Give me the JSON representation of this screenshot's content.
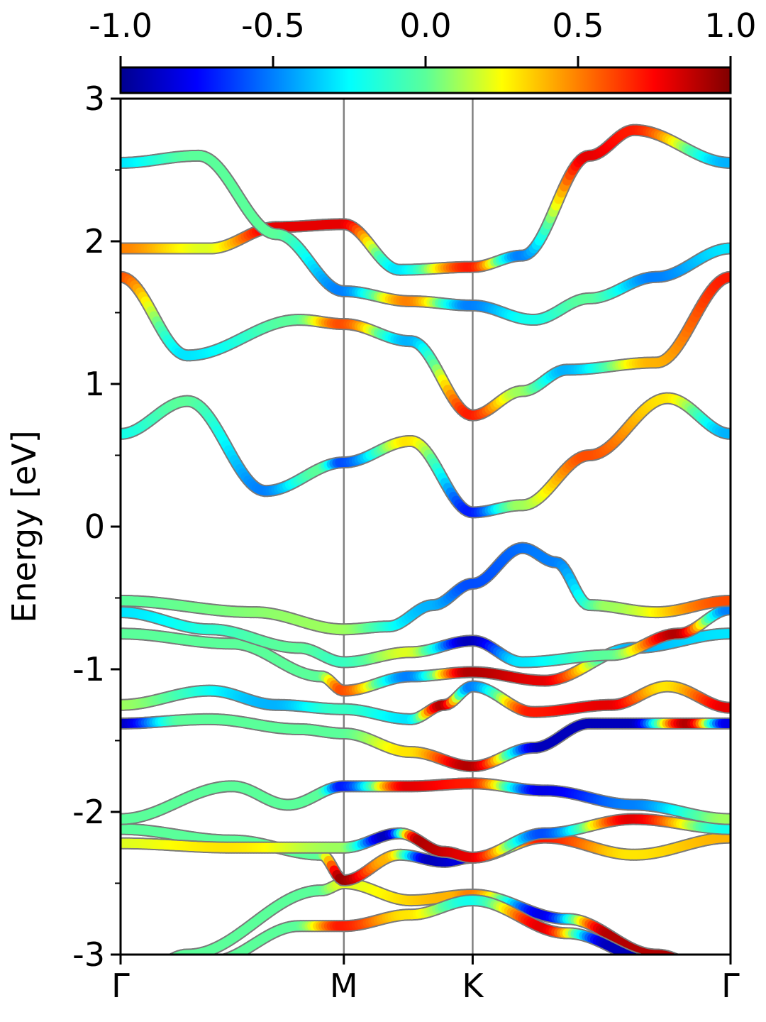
{
  "chart_data": {
    "type": "band-structure",
    "ylabel": "Energy [eV]",
    "ylim": [
      -3,
      3
    ],
    "yticks": [
      "3",
      "2",
      "1",
      "0",
      "-1",
      "-2",
      "-3"
    ],
    "kpath": {
      "labels": [
        "Γ",
        "M",
        "K",
        "Γ"
      ],
      "positions": [
        0,
        1,
        1.577,
        2.732
      ]
    },
    "colorbar": {
      "range": [
        -1.0,
        1.0
      ],
      "ticks": [
        "-1.0",
        "-0.5",
        "0.0",
        "0.5",
        "1.0"
      ],
      "colormap": "jet"
    },
    "bands": [
      {
        "name": "band-1",
        "points": [
          [
            0,
            -3.25
          ],
          [
            0.3,
            -3.0
          ],
          [
            0.9,
            -2.55
          ],
          [
            1,
            -2.5
          ],
          [
            1.3,
            -2.62
          ],
          [
            1.577,
            -2.58
          ],
          [
            2.0,
            -2.75
          ],
          [
            2.4,
            -3.0
          ],
          [
            2.732,
            -3.2
          ]
        ],
        "projection": [
          [
            0,
            0
          ],
          [
            0.9,
            0
          ],
          [
            1,
            0.2
          ],
          [
            1.5,
            0.4
          ],
          [
            1.577,
            0.5
          ],
          [
            1.9,
            -0.8
          ],
          [
            2.2,
            0.9
          ],
          [
            2.732,
            0.9
          ]
        ]
      },
      {
        "name": "band-2",
        "points": [
          [
            0,
            -3.35
          ],
          [
            0.4,
            -3.05
          ],
          [
            0.8,
            -2.8
          ],
          [
            1,
            -2.8
          ],
          [
            1.3,
            -2.72
          ],
          [
            1.577,
            -2.62
          ],
          [
            2.0,
            -2.85
          ],
          [
            2.4,
            -3.05
          ],
          [
            2.732,
            -3.3
          ]
        ],
        "projection": [
          [
            0,
            0
          ],
          [
            0.8,
            0
          ],
          [
            1,
            0.7
          ],
          [
            1.3,
            0.3
          ],
          [
            1.577,
            -0.2
          ],
          [
            1.9,
            0.8
          ],
          [
            2.2,
            -0.9
          ],
          [
            2.732,
            -0.9
          ]
        ]
      },
      {
        "name": "band-3",
        "points": [
          [
            0,
            -2.12
          ],
          [
            0.5,
            -2.2
          ],
          [
            0.9,
            -2.3
          ],
          [
            1,
            -2.48
          ],
          [
            1.25,
            -2.3
          ],
          [
            1.45,
            -2.35
          ],
          [
            1.577,
            -2.32
          ],
          [
            1.9,
            -2.18
          ],
          [
            2.3,
            -2.3
          ],
          [
            2.732,
            -2.18
          ]
        ],
        "projection": [
          [
            0,
            0
          ],
          [
            0.9,
            0
          ],
          [
            1,
            0.95
          ],
          [
            1.2,
            0.4
          ],
          [
            1.4,
            -0.9
          ],
          [
            1.577,
            -0.8
          ],
          [
            1.9,
            0.7
          ],
          [
            2.3,
            0.3
          ],
          [
            2.732,
            0.4
          ]
        ]
      },
      {
        "name": "band-4",
        "points": [
          [
            0,
            -2.22
          ],
          [
            0.5,
            -2.25
          ],
          [
            1,
            -2.25
          ],
          [
            1.25,
            -2.15
          ],
          [
            1.45,
            -2.28
          ],
          [
            1.577,
            -2.32
          ],
          [
            1.9,
            -2.15
          ],
          [
            2.3,
            -2.05
          ],
          [
            2.732,
            -2.12
          ]
        ],
        "projection": [
          [
            0,
            0.2
          ],
          [
            0.5,
            0.3
          ],
          [
            1,
            0.1
          ],
          [
            1.2,
            -0.9
          ],
          [
            1.35,
            0.9
          ],
          [
            1.577,
            0.8
          ],
          [
            1.9,
            -0.6
          ],
          [
            2.3,
            0.8
          ],
          [
            2.732,
            -0.2
          ]
        ]
      },
      {
        "name": "band-5",
        "points": [
          [
            0,
            -2.05
          ],
          [
            0.5,
            -1.82
          ],
          [
            0.75,
            -1.95
          ],
          [
            1,
            -1.82
          ],
          [
            1.3,
            -1.82
          ],
          [
            1.577,
            -1.8
          ],
          [
            1.9,
            -1.85
          ],
          [
            2.3,
            -1.95
          ],
          [
            2.732,
            -2.05
          ]
        ],
        "projection": [
          [
            0,
            0
          ],
          [
            0.9,
            0
          ],
          [
            1,
            -0.7
          ],
          [
            1.3,
            0.8
          ],
          [
            1.577,
            0.7
          ],
          [
            1.9,
            -0.8
          ],
          [
            2.3,
            -0.5
          ],
          [
            2.732,
            0.1
          ]
        ]
      },
      {
        "name": "band-6",
        "points": [
          [
            0,
            -1.38
          ],
          [
            0.4,
            -1.35
          ],
          [
            0.8,
            -1.42
          ],
          [
            1,
            -1.45
          ],
          [
            1.3,
            -1.58
          ],
          [
            1.577,
            -1.68
          ],
          [
            1.85,
            -1.55
          ],
          [
            2.1,
            -1.38
          ],
          [
            2.5,
            -1.38
          ],
          [
            2.732,
            -1.38
          ]
        ],
        "projection": [
          [
            0,
            -0.9
          ],
          [
            0.3,
            0
          ],
          [
            1,
            0
          ],
          [
            1.3,
            0.3
          ],
          [
            1.577,
            0.9
          ],
          [
            1.9,
            -0.9
          ],
          [
            2.3,
            -0.9
          ],
          [
            2.55,
            0.9
          ],
          [
            2.732,
            -0.8
          ]
        ]
      },
      {
        "name": "band-7",
        "points": [
          [
            0,
            -1.25
          ],
          [
            0.4,
            -1.15
          ],
          [
            0.7,
            -1.25
          ],
          [
            1,
            -1.28
          ],
          [
            1.3,
            -1.35
          ],
          [
            1.45,
            -1.25
          ],
          [
            1.577,
            -1.12
          ],
          [
            1.85,
            -1.3
          ],
          [
            2.2,
            -1.25
          ],
          [
            2.45,
            -1.12
          ],
          [
            2.732,
            -1.27
          ]
        ],
        "projection": [
          [
            0,
            0.1
          ],
          [
            0.7,
            -0.4
          ],
          [
            1,
            -0.1
          ],
          [
            1.3,
            -0.3
          ],
          [
            1.45,
            0.9
          ],
          [
            1.577,
            -0.5
          ],
          [
            1.85,
            0.7
          ],
          [
            2.2,
            0.8
          ],
          [
            2.45,
            0.3
          ],
          [
            2.732,
            0.8
          ]
        ]
      },
      {
        "name": "band-8",
        "points": [
          [
            0,
            -0.75
          ],
          [
            0.5,
            -0.82
          ],
          [
            0.9,
            -1.05
          ],
          [
            1,
            -1.15
          ],
          [
            1.3,
            -1.05
          ],
          [
            1.577,
            -1.02
          ],
          [
            1.9,
            -1.08
          ],
          [
            2.3,
            -0.85
          ],
          [
            2.732,
            -0.75
          ]
        ],
        "projection": [
          [
            0,
            0
          ],
          [
            0.9,
            0
          ],
          [
            1,
            0.6
          ],
          [
            1.3,
            -0.5
          ],
          [
            1.577,
            0.9
          ],
          [
            1.9,
            0.8
          ],
          [
            2.3,
            -0.4
          ],
          [
            2.732,
            -0.3
          ]
        ]
      },
      {
        "name": "band-9",
        "points": [
          [
            0,
            -0.6
          ],
          [
            0.4,
            -0.72
          ],
          [
            0.8,
            -0.85
          ],
          [
            1,
            -0.95
          ],
          [
            1.3,
            -0.88
          ],
          [
            1.577,
            -0.8
          ],
          [
            1.8,
            -0.95
          ],
          [
            2.2,
            -0.9
          ],
          [
            2.5,
            -0.75
          ],
          [
            2.732,
            -0.58
          ]
        ],
        "projection": [
          [
            0,
            -0.3
          ],
          [
            0.8,
            0
          ],
          [
            1,
            -0.1
          ],
          [
            1.3,
            0.2
          ],
          [
            1.577,
            -0.9
          ],
          [
            1.8,
            -0.3
          ],
          [
            2.2,
            0
          ],
          [
            2.5,
            0.9
          ],
          [
            2.732,
            -0.5
          ]
        ]
      },
      {
        "name": "band-10",
        "points": [
          [
            0,
            -0.52
          ],
          [
            0.6,
            -0.6
          ],
          [
            1,
            -0.72
          ],
          [
            1.2,
            -0.7
          ],
          [
            1.4,
            -0.55
          ],
          [
            1.577,
            -0.4
          ],
          [
            1.8,
            -0.15
          ],
          [
            1.95,
            -0.25
          ],
          [
            2.1,
            -0.55
          ],
          [
            2.4,
            -0.6
          ],
          [
            2.732,
            -0.52
          ]
        ],
        "projection": [
          [
            0,
            0
          ],
          [
            1,
            0.1
          ],
          [
            1.4,
            -0.4
          ],
          [
            1.577,
            -0.6
          ],
          [
            1.95,
            -0.5
          ],
          [
            2.2,
            0.1
          ],
          [
            2.732,
            0.6
          ]
        ]
      },
      {
        "name": "band-11",
        "points": [
          [
            0,
            0.65
          ],
          [
            0.3,
            0.88
          ],
          [
            0.65,
            0.25
          ],
          [
            1,
            0.45
          ],
          [
            1.3,
            0.6
          ],
          [
            1.577,
            0.1
          ],
          [
            1.8,
            0.15
          ],
          [
            2.1,
            0.5
          ],
          [
            2.45,
            0.9
          ],
          [
            2.732,
            0.65
          ]
        ],
        "projection": [
          [
            0,
            -0.2
          ],
          [
            0.3,
            0
          ],
          [
            0.65,
            -0.5
          ],
          [
            0.9,
            0
          ],
          [
            1,
            -0.6
          ],
          [
            1.3,
            0.3
          ],
          [
            1.577,
            -0.7
          ],
          [
            1.8,
            0.1
          ],
          [
            2.1,
            0.6
          ],
          [
            2.45,
            0.3
          ],
          [
            2.732,
            -0.4
          ]
        ]
      },
      {
        "name": "band-12",
        "points": [
          [
            0,
            1.75
          ],
          [
            0.3,
            1.2
          ],
          [
            0.8,
            1.45
          ],
          [
            1,
            1.42
          ],
          [
            1.3,
            1.3
          ],
          [
            1.577,
            0.78
          ],
          [
            1.8,
            0.95
          ],
          [
            2.0,
            1.1
          ],
          [
            2.4,
            1.15
          ],
          [
            2.732,
            1.75
          ]
        ],
        "projection": [
          [
            0,
            0.6
          ],
          [
            0.3,
            -0.3
          ],
          [
            0.8,
            0
          ],
          [
            1,
            0.6
          ],
          [
            1.3,
            -0.4
          ],
          [
            1.577,
            0.7
          ],
          [
            1.8,
            0.1
          ],
          [
            2.0,
            -0.4
          ],
          [
            2.4,
            0.4
          ],
          [
            2.732,
            0.7
          ]
        ]
      },
      {
        "name": "band-13",
        "points": [
          [
            0,
            1.95
          ],
          [
            0.4,
            1.95
          ],
          [
            0.7,
            2.1
          ],
          [
            1,
            2.12
          ],
          [
            1.25,
            1.8
          ],
          [
            1.577,
            1.82
          ],
          [
            1.8,
            1.9
          ],
          [
            2.1,
            2.6
          ],
          [
            2.3,
            2.78
          ],
          [
            2.732,
            2.55
          ]
        ],
        "projection": [
          [
            0,
            0.5
          ],
          [
            0.4,
            0.2
          ],
          [
            0.7,
            0.8
          ],
          [
            1,
            0.8
          ],
          [
            1.25,
            -0.3
          ],
          [
            1.577,
            0.7
          ],
          [
            1.8,
            -0.5
          ],
          [
            2.1,
            0.8
          ],
          [
            2.3,
            0.7
          ],
          [
            2.732,
            -0.4
          ]
        ]
      },
      {
        "name": "band-14",
        "points": [
          [
            0,
            2.55
          ],
          [
            0.35,
            2.6
          ],
          [
            0.7,
            2.05
          ],
          [
            1,
            1.65
          ],
          [
            1.3,
            1.58
          ],
          [
            1.577,
            1.55
          ],
          [
            1.85,
            1.45
          ],
          [
            2.1,
            1.6
          ],
          [
            2.4,
            1.75
          ],
          [
            2.732,
            1.95
          ]
        ],
        "projection": [
          [
            0,
            -0.3
          ],
          [
            0.35,
            0
          ],
          [
            0.7,
            0
          ],
          [
            1,
            -0.5
          ],
          [
            1.3,
            0.5
          ],
          [
            1.577,
            -0.5
          ],
          [
            1.85,
            -0.2
          ],
          [
            2.1,
            0
          ],
          [
            2.4,
            -0.5
          ],
          [
            2.732,
            -0.3
          ]
        ]
      }
    ]
  }
}
